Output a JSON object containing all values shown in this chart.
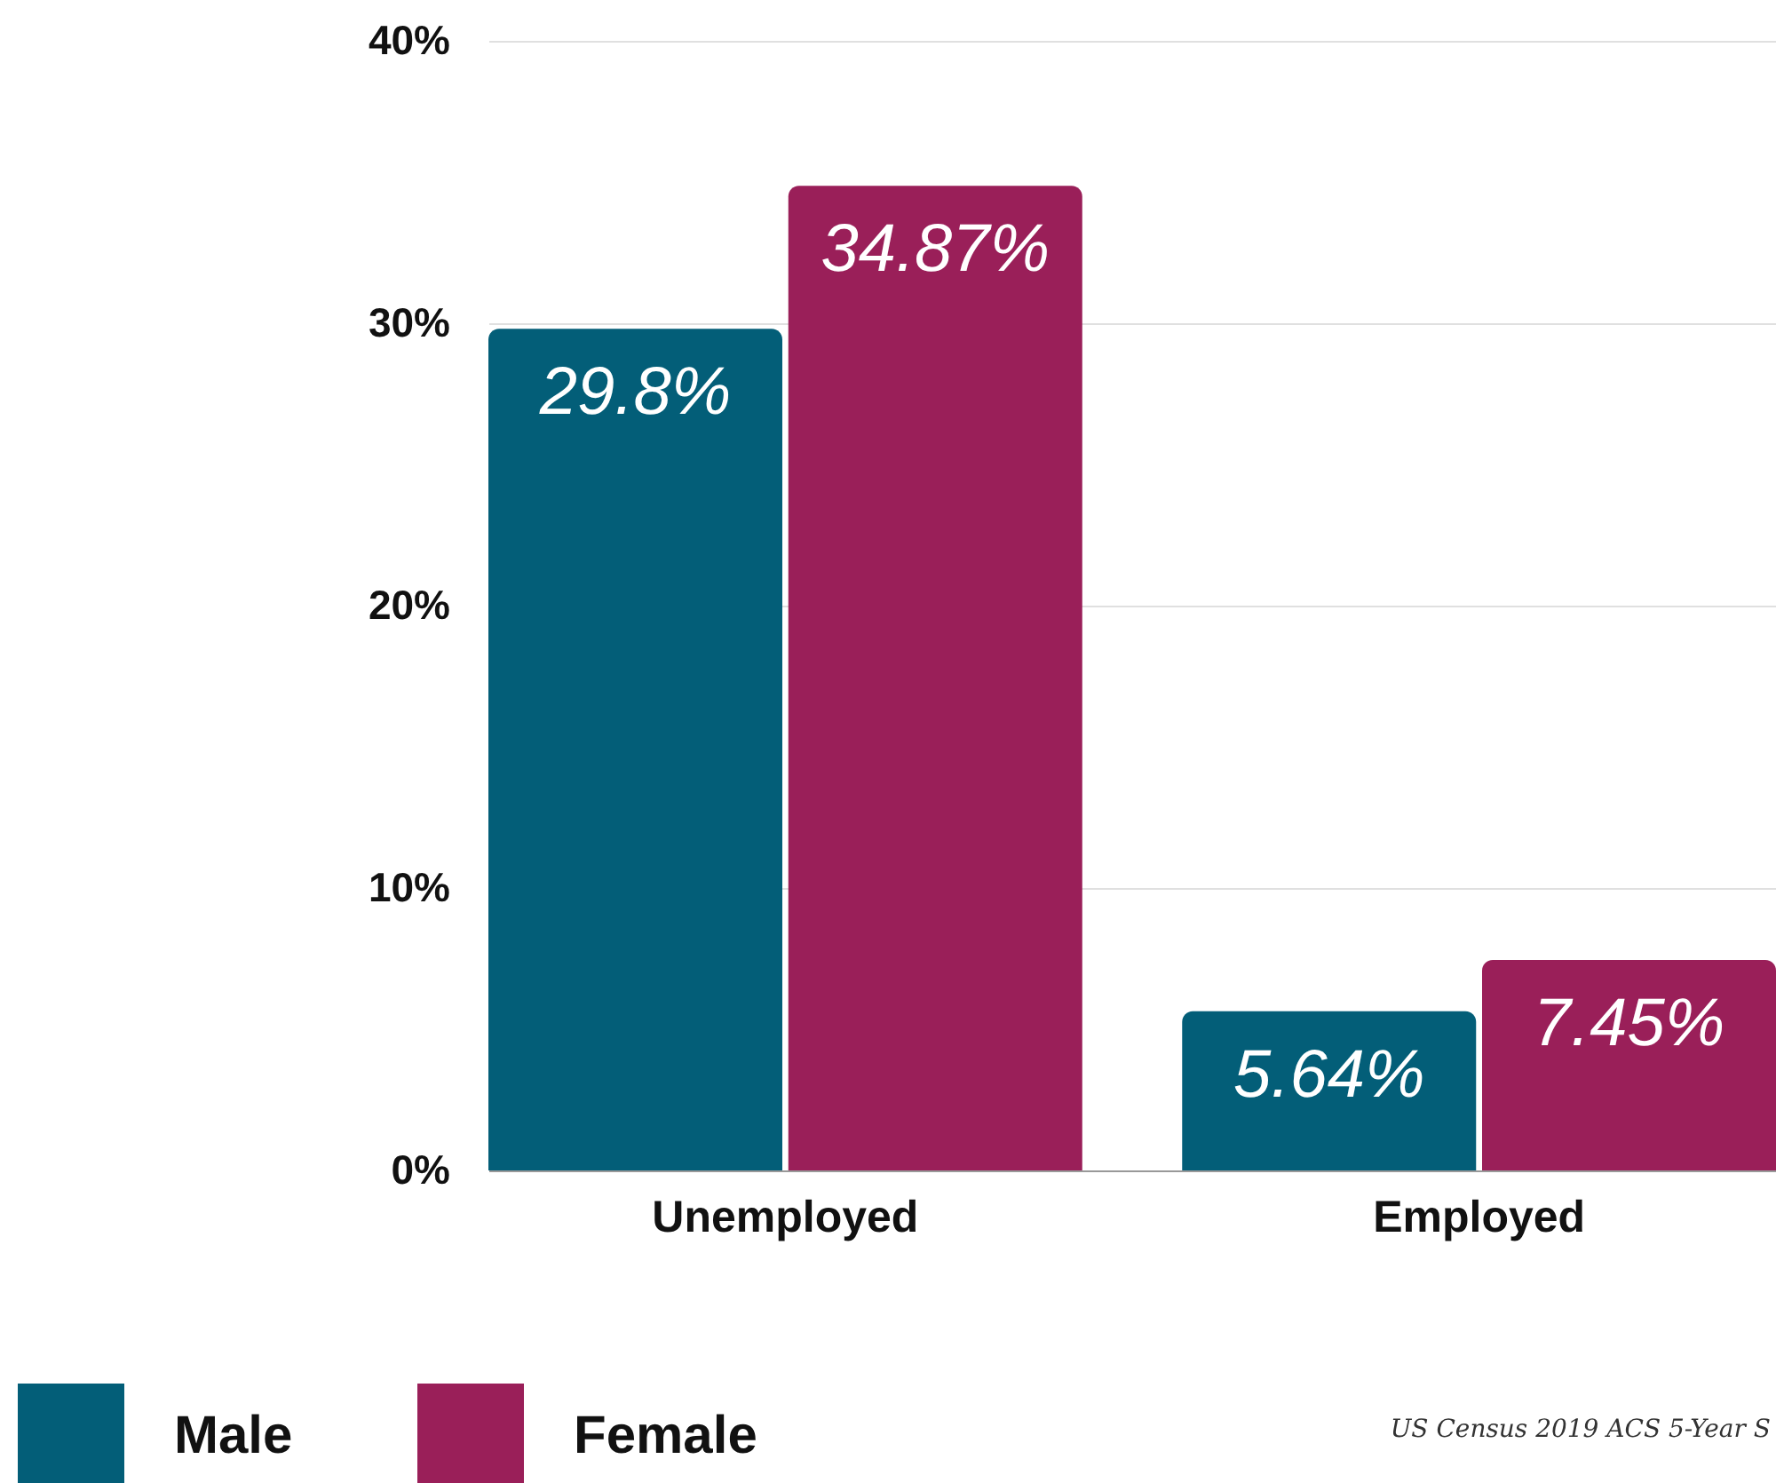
{
  "chart_data": {
    "type": "bar",
    "categories": [
      "Unemployed",
      "Employed"
    ],
    "series": [
      {
        "name": "Male",
        "color": "#035e78",
        "values": [
          29.8,
          5.64
        ],
        "value_labels": [
          "29.8%",
          "5.64%"
        ]
      },
      {
        "name": "Female",
        "color": "#9a1f59",
        "values": [
          34.87,
          7.45
        ],
        "value_labels": [
          "34.87%",
          "7.45%"
        ]
      }
    ],
    "ylim": [
      0,
      40
    ],
    "yticks": [
      {
        "value": 0,
        "label": "0%"
      },
      {
        "value": 10,
        "label": "10%"
      },
      {
        "value": 20,
        "label": "20%"
      },
      {
        "value": 30,
        "label": "30%"
      },
      {
        "value": 40,
        "label": "40%"
      }
    ],
    "grid": "y",
    "legend": "bottom left",
    "annotations": [
      "US Census 2019 ACS 5-Year S"
    ]
  }
}
